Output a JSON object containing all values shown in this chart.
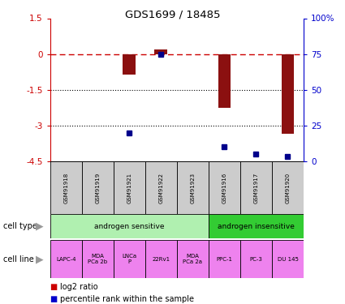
{
  "title": "GDS1699 / 18485",
  "samples": [
    "GSM91918",
    "GSM91919",
    "GSM91921",
    "GSM91922",
    "GSM91923",
    "GSM91916",
    "GSM91917",
    "GSM91920"
  ],
  "log2_ratio": [
    0.0,
    0.0,
    -0.85,
    0.18,
    0.0,
    -2.25,
    0.0,
    -3.35
  ],
  "percentile_rank": [
    null,
    null,
    20,
    75,
    null,
    10,
    5,
    3
  ],
  "cell_type_groups": [
    {
      "label": "androgen sensitive",
      "start": 0,
      "end": 4,
      "color": "#b0f0b0"
    },
    {
      "label": "androgen insensitive",
      "start": 5,
      "end": 7,
      "color": "#33cc33"
    }
  ],
  "cell_lines": [
    "LAPC-4",
    "MDA\nPCa 2b",
    "LNCa\nP",
    "22Rv1",
    "MDA\nPCa 2a",
    "PPC-1",
    "PC-3",
    "DU 145"
  ],
  "cell_line_color": "#ee82ee",
  "sample_box_color": "#cccccc",
  "ylim": [
    -4.5,
    1.5
  ],
  "yticks_left": [
    1.5,
    0,
    -1.5,
    -3,
    -4.5
  ],
  "yticks_right_vals": [
    100,
    75,
    50,
    25,
    0
  ],
  "bar_color": "#8b1010",
  "dot_color": "#00008b",
  "legend_bar_color": "#cc0000",
  "legend_dot_color": "#0000cc",
  "left_axis_color": "#cc0000",
  "right_axis_color": "#0000cc"
}
